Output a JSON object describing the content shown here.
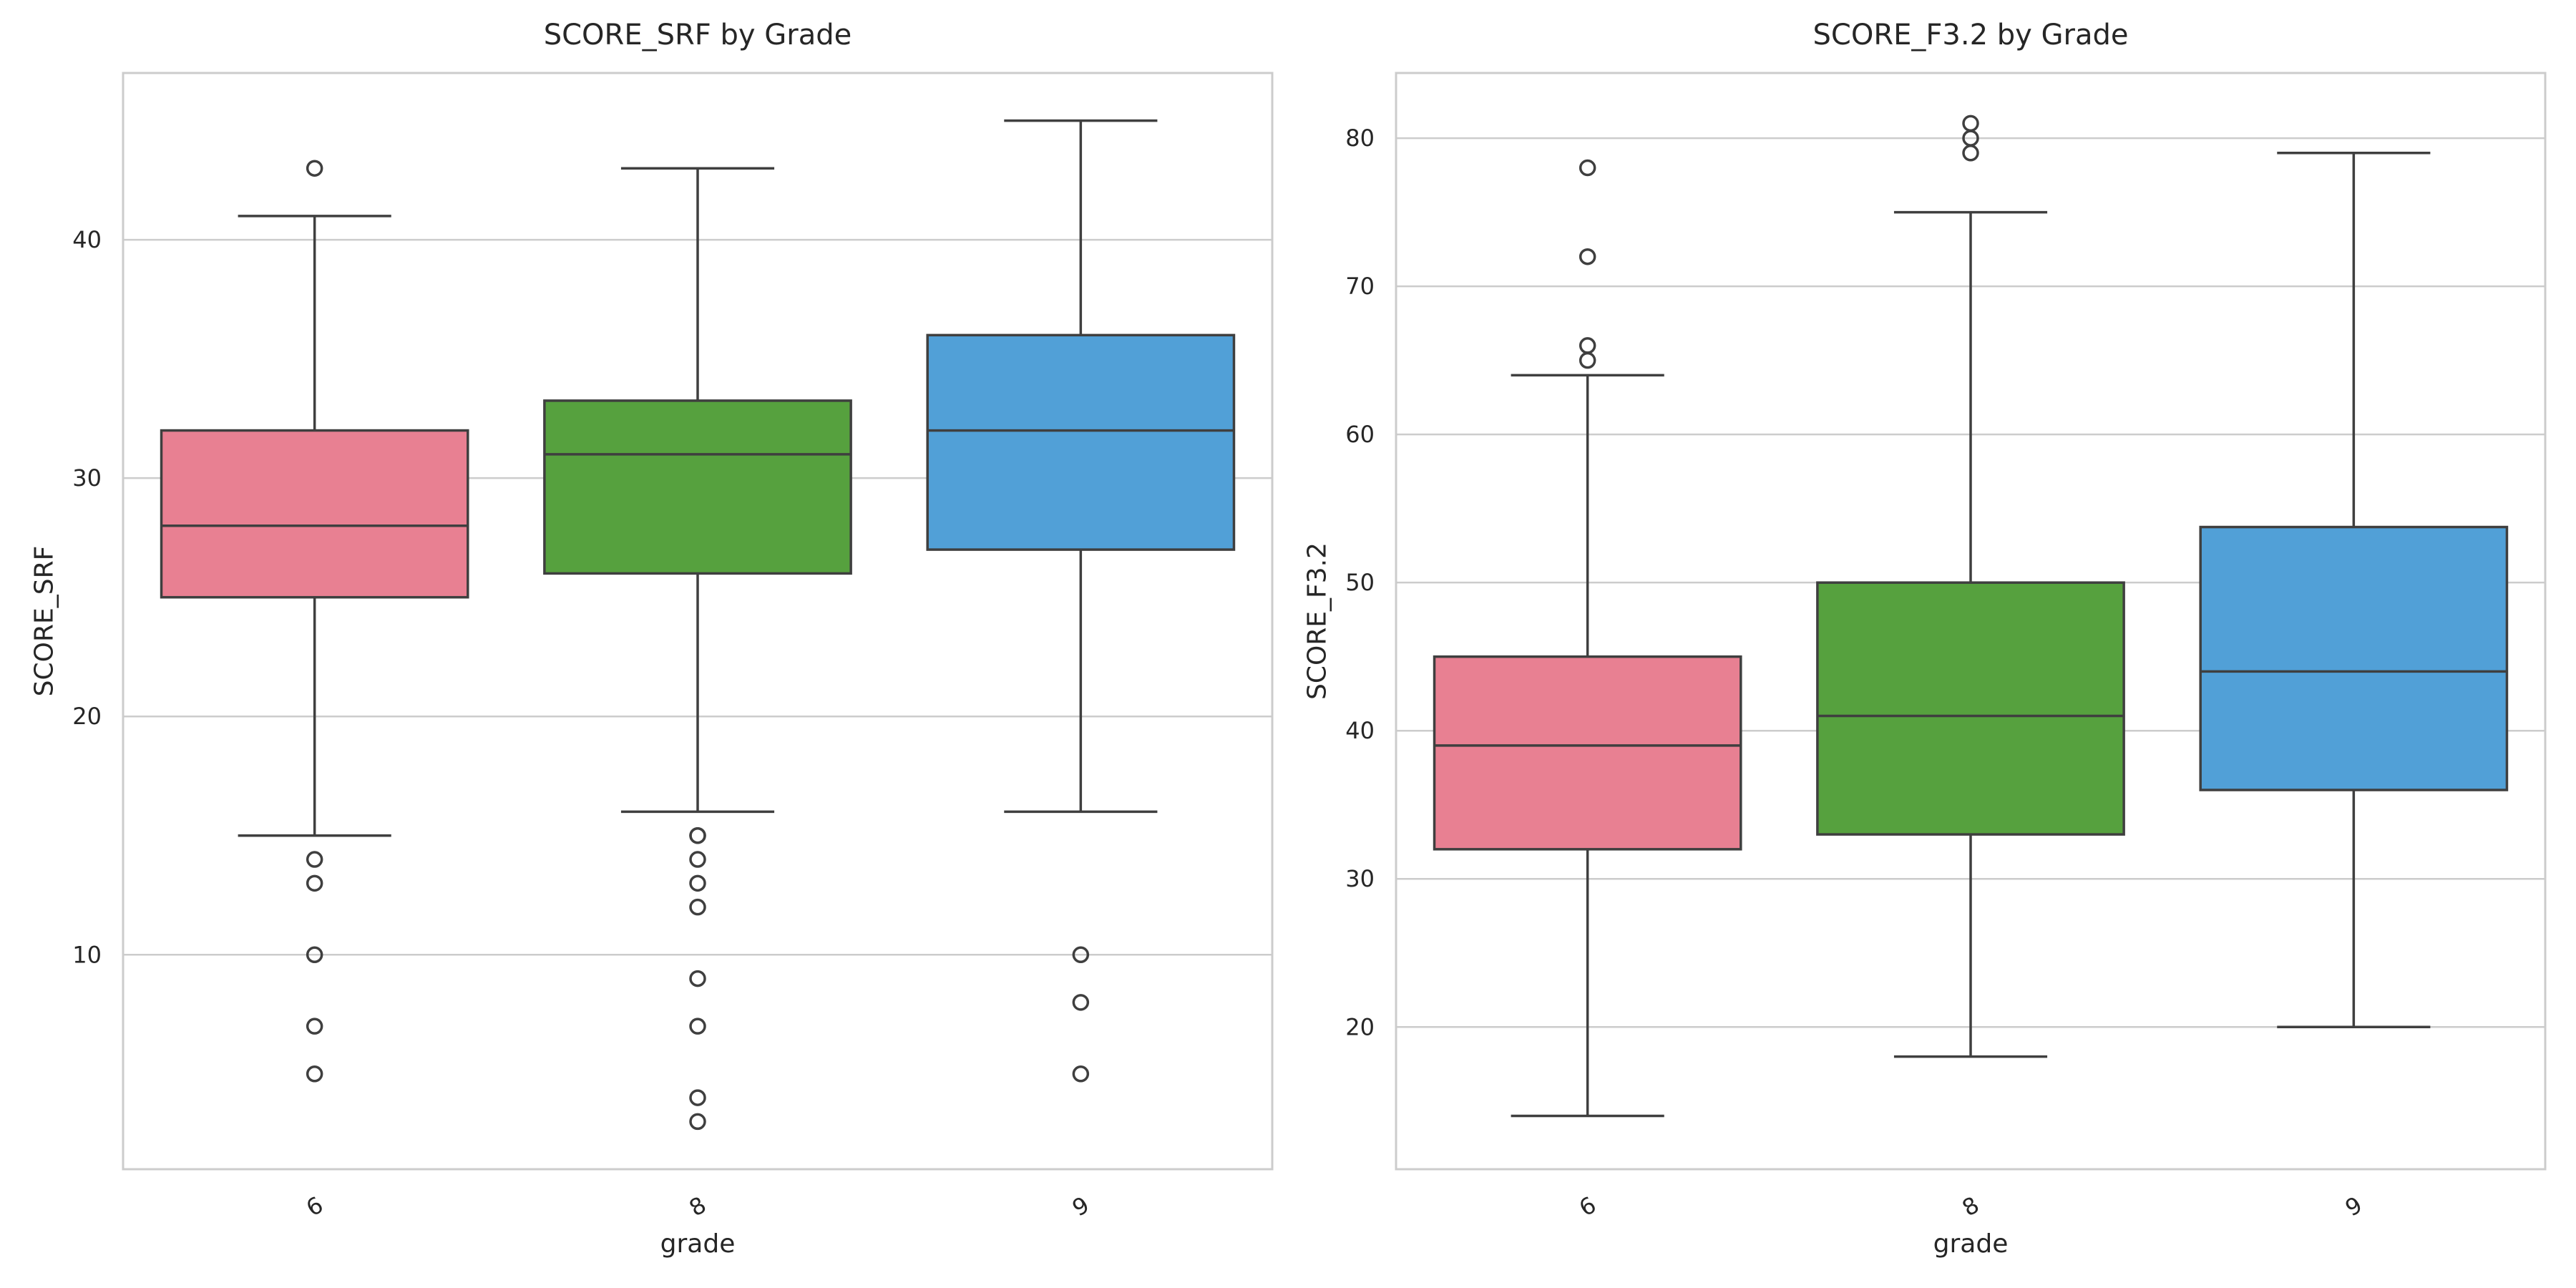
{
  "chart_data": [
    {
      "type": "box",
      "title": "SCORE_SRF by Grade",
      "xlabel": "grade",
      "ylabel": "SCORE_SRF",
      "categories": [
        "6",
        "8",
        "9"
      ],
      "ylim": [
        1,
        47
      ],
      "yticks": [
        10,
        20,
        30,
        40
      ],
      "grid": true,
      "boxes": [
        {
          "category": "6",
          "color": "#e88092",
          "whisker_low": 15,
          "q1": 25,
          "median": 28,
          "q3": 32,
          "whisker_high": 41,
          "outliers": [
            43,
            14,
            13,
            10,
            7,
            5
          ]
        },
        {
          "category": "8",
          "color": "#56a13e",
          "whisker_low": 16,
          "q1": 26,
          "median": 31,
          "q3": 33.25,
          "whisker_high": 43,
          "outliers": [
            15,
            15,
            14,
            13,
            12,
            9,
            7,
            4,
            3
          ]
        },
        {
          "category": "9",
          "color": "#51a0d7",
          "whisker_low": 16,
          "q1": 27,
          "median": 32,
          "q3": 36,
          "whisker_high": 45,
          "outliers": [
            10,
            8,
            5
          ]
        }
      ]
    },
    {
      "type": "box",
      "title": "SCORE_F3.2 by Grade",
      "xlabel": "grade",
      "ylabel": "SCORE_F3.2",
      "categories": [
        "6",
        "8",
        "9"
      ],
      "ylim": [
        10.4,
        84.4
      ],
      "yticks": [
        20,
        30,
        40,
        50,
        60,
        70,
        80
      ],
      "grid": true,
      "boxes": [
        {
          "category": "6",
          "color": "#e88092",
          "whisker_low": 14,
          "q1": 32,
          "median": 39,
          "q3": 45,
          "whisker_high": 64,
          "outliers": [
            65,
            66,
            72,
            78
          ]
        },
        {
          "category": "8",
          "color": "#56a13e",
          "whisker_low": 18,
          "q1": 33,
          "median": 41,
          "q3": 50,
          "whisker_high": 75,
          "outliers": [
            79,
            80,
            81
          ]
        },
        {
          "category": "9",
          "color": "#51a0d7",
          "whisker_low": 20,
          "q1": 36,
          "median": 44,
          "q3": 53.75,
          "whisker_high": 79,
          "outliers": []
        }
      ]
    }
  ]
}
